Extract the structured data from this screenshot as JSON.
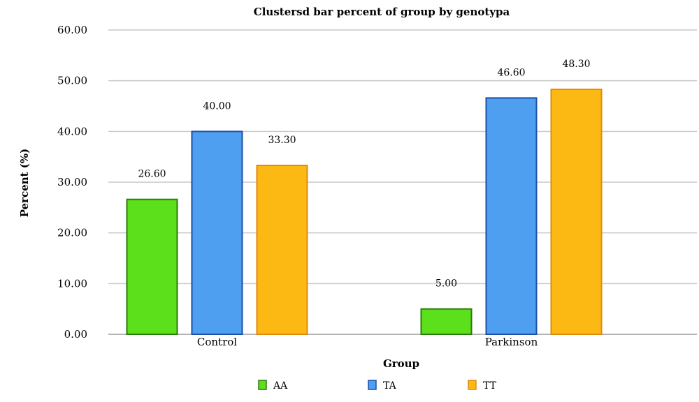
{
  "chart_data": {
    "type": "bar",
    "title": "Clustersd bar percent of group by genotypa",
    "xlabel": "Group",
    "ylabel": "Percent (%)",
    "categories": [
      "Control",
      "Parkinson"
    ],
    "series": [
      {
        "name": "AA",
        "values": [
          26.6,
          5.0
        ],
        "labels": [
          "26.60",
          "5.00"
        ],
        "color": "#5ce01c",
        "stroke": "#2d7a0c"
      },
      {
        "name": "TA",
        "values": [
          40.0,
          46.6
        ],
        "labels": [
          "40.00",
          "46.60"
        ],
        "color": "#4f9ff0",
        "stroke": "#1c4fa8"
      },
      {
        "name": "TT",
        "values": [
          33.3,
          48.3
        ],
        "labels": [
          "33.30",
          "48.30"
        ],
        "color": "#fdb913",
        "stroke": "#e08a12"
      }
    ],
    "ylim": [
      0,
      60
    ],
    "yticks": [
      "0.00",
      "10.00",
      "20.00",
      "30.00",
      "40.00",
      "50.00",
      "60.00"
    ],
    "grid": true,
    "legend_position": "bottom"
  }
}
